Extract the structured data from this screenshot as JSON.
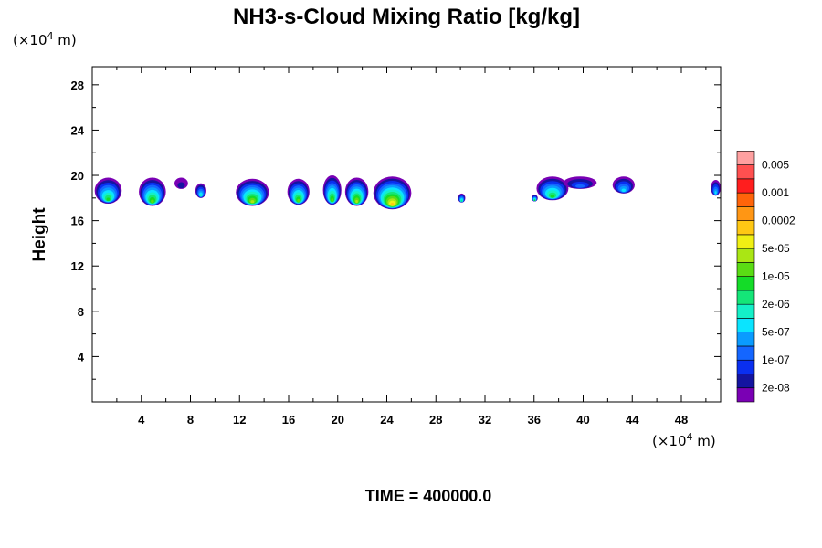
{
  "chart_data": {
    "type": "heatmap",
    "title": "NH3-s-Cloud Mixing Ratio [kg/kg]",
    "ylabel": "Height",
    "time_label": "TIME = 400000.0",
    "x_unit": {
      "open": "(×10",
      "exp": "4",
      "close": " m)"
    },
    "y_unit": {
      "open": "(×10",
      "exp": "4",
      "close": " m)"
    },
    "xlim": [
      0,
      51.2
    ],
    "ylim": [
      0,
      29.6
    ],
    "x_ticks": [
      4,
      8,
      12,
      16,
      20,
      24,
      28,
      32,
      36,
      40,
      44,
      48
    ],
    "y_ticks": [
      4,
      8,
      12,
      16,
      20,
      24,
      28
    ],
    "colorbar": {
      "colors": [
        "#7a00b4",
        "#1414a0",
        "#0a2ff0",
        "#1466ff",
        "#0a9bff",
        "#0ae4ff",
        "#14f0c8",
        "#14e678",
        "#14dc28",
        "#5adc14",
        "#aae614",
        "#f0f014",
        "#ffc814",
        "#ff9614",
        "#ff640a",
        "#ff1e1e",
        "#ff5050",
        "#ffa0a0"
      ],
      "labels": [
        "2e-08",
        "1e-07",
        "5e-07",
        "2e-06",
        "1e-05",
        "5e-05",
        "0.0002",
        "0.001",
        "0.005"
      ]
    },
    "clouds": [
      {
        "x": [
          0.2,
          2.4
        ],
        "y": [
          17.5,
          19.8
        ],
        "peak": 8
      },
      {
        "x": [
          3.8,
          6.0
        ],
        "y": [
          17.3,
          19.8
        ],
        "peak": 9
      },
      {
        "x": [
          6.7,
          7.8
        ],
        "y": [
          18.8,
          19.8
        ],
        "peak": 1
      },
      {
        "x": [
          8.4,
          9.3
        ],
        "y": [
          18.0,
          19.3
        ],
        "peak": 6
      },
      {
        "x": [
          11.7,
          14.4
        ],
        "y": [
          17.3,
          19.7
        ],
        "peak": 10
      },
      {
        "x": [
          15.9,
          17.7
        ],
        "y": [
          17.4,
          19.7
        ],
        "peak": 9
      },
      {
        "x": [
          18.8,
          20.3
        ],
        "y": [
          17.4,
          20.0
        ],
        "peak": 9
      },
      {
        "x": [
          20.6,
          22.5
        ],
        "y": [
          17.3,
          19.8
        ],
        "peak": 10
      },
      {
        "x": [
          22.9,
          26.0
        ],
        "y": [
          17.0,
          19.9
        ],
        "peak": 12
      },
      {
        "x": [
          29.8,
          30.4
        ],
        "y": [
          17.6,
          18.4
        ],
        "peak": 7
      },
      {
        "x": [
          35.8,
          36.3
        ],
        "y": [
          17.7,
          18.3
        ],
        "peak": 8
      },
      {
        "x": [
          36.2,
          38.8
        ],
        "y": [
          17.8,
          19.9
        ],
        "peak": 8
      },
      {
        "x": [
          38.4,
          41.1
        ],
        "y": [
          18.8,
          19.9
        ],
        "peak": 3
      },
      {
        "x": [
          42.4,
          44.2
        ],
        "y": [
          18.4,
          19.9
        ],
        "peak": 5
      },
      {
        "x": [
          50.4,
          51.2
        ],
        "y": [
          18.2,
          19.6
        ],
        "peak": 5
      }
    ]
  }
}
